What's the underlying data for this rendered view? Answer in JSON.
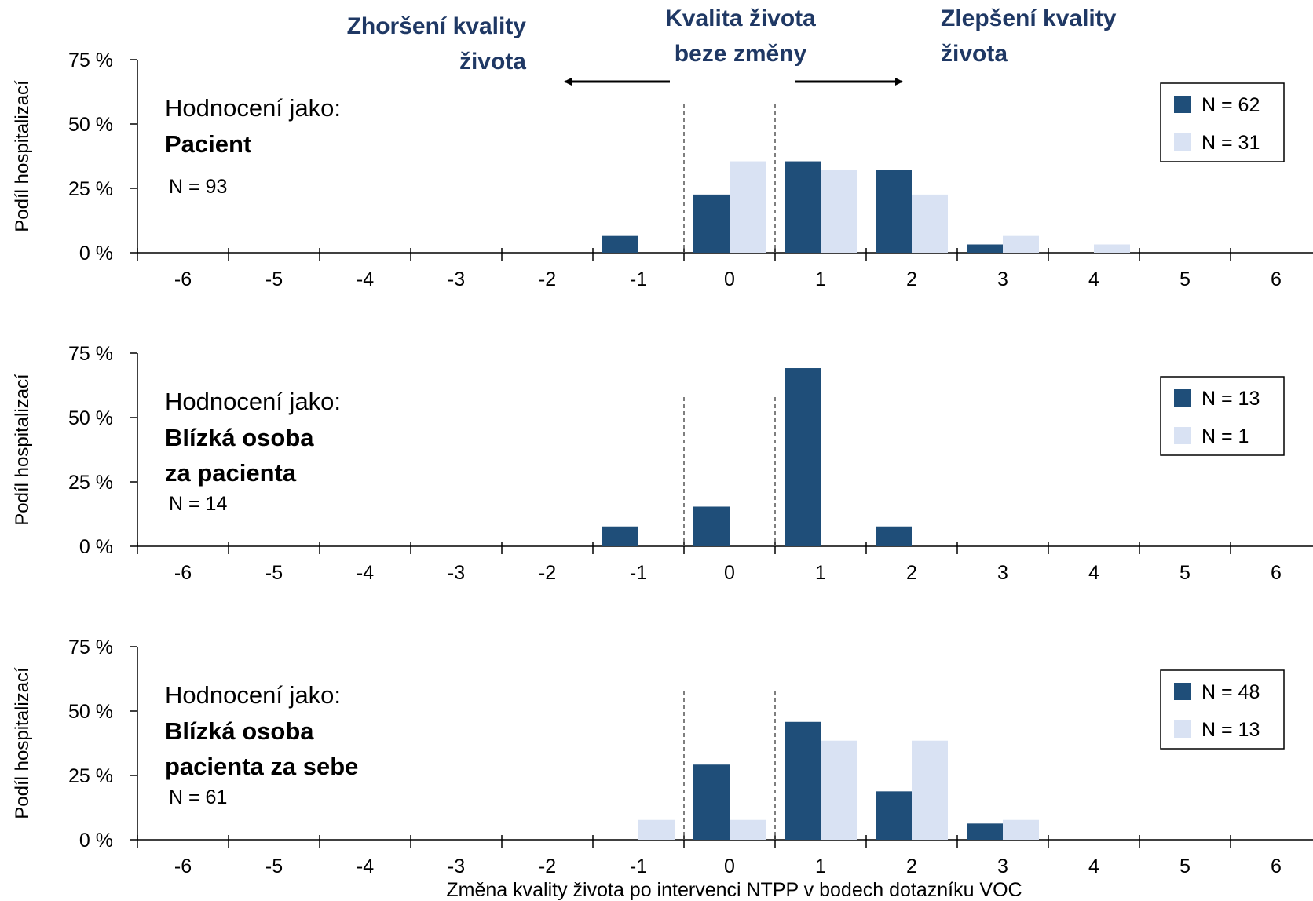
{
  "headers": {
    "left": [
      "Zhoršení kvality",
      "života"
    ],
    "center": [
      "Kvalita života",
      "beze změny"
    ],
    "right": [
      "Zlepšení kvality",
      "života"
    ]
  },
  "colors": {
    "dark": "#1f4e79",
    "light": "#d9e2f3",
    "header": "#1f3864"
  },
  "chart_data": [
    {
      "type": "bar",
      "title_line1": "Hodnocení jako:",
      "title_bold": [
        "Pacient"
      ],
      "n_label": "N = 93",
      "ylabel": "Podíl hospitalizací",
      "xlabel": "",
      "ylim": [
        0,
        75
      ],
      "yticks": [
        "0 %",
        "25 %",
        "50 %",
        "75 %"
      ],
      "categories": [
        "-6",
        "-5",
        "-4",
        "-3",
        "-2",
        "-1",
        "0",
        "1",
        "2",
        "3",
        "4",
        "5",
        "6"
      ],
      "series": [
        {
          "name": "N = 62",
          "color": "dark",
          "values": [
            0,
            0,
            0,
            0,
            0,
            6.5,
            22.6,
            35.5,
            32.3,
            3.2,
            0,
            0,
            0
          ]
        },
        {
          "name": "N = 31",
          "color": "light",
          "values": [
            0,
            0,
            0,
            0,
            0,
            0,
            35.5,
            32.3,
            22.6,
            6.5,
            3.2,
            0,
            0
          ]
        }
      ]
    },
    {
      "type": "bar",
      "title_line1": "Hodnocení jako:",
      "title_bold": [
        "Blízká osoba",
        "za pacienta"
      ],
      "n_label": "N = 14",
      "ylabel": "Podíl hospitalizací",
      "xlabel": "",
      "ylim": [
        0,
        75
      ],
      "yticks": [
        "0 %",
        "25 %",
        "50 %",
        "75 %"
      ],
      "categories": [
        "-6",
        "-5",
        "-4",
        "-3",
        "-2",
        "-1",
        "0",
        "1",
        "2",
        "3",
        "4",
        "5",
        "6"
      ],
      "series": [
        {
          "name": "N = 13",
          "color": "dark",
          "values": [
            0,
            0,
            0,
            0,
            0,
            7.7,
            15.4,
            69.2,
            7.7,
            0,
            0,
            0,
            0
          ]
        },
        {
          "name": "N = 1",
          "color": "light",
          "values": [
            0,
            0,
            0,
            0,
            0,
            0,
            0,
            0,
            0,
            0,
            0,
            0,
            0
          ]
        }
      ]
    },
    {
      "type": "bar",
      "title_line1": "Hodnocení jako:",
      "title_bold": [
        "Blízká osoba",
        "pacienta za sebe"
      ],
      "n_label": "N = 61",
      "ylabel": "Podíl hospitalizací",
      "xlabel": "Změna kvality života po intervenci NTPP v bodech dotazníku VOC",
      "ylim": [
        0,
        75
      ],
      "yticks": [
        "0 %",
        "25 %",
        "50 %",
        "75 %"
      ],
      "categories": [
        "-6",
        "-5",
        "-4",
        "-3",
        "-2",
        "-1",
        "0",
        "1",
        "2",
        "3",
        "4",
        "5",
        "6"
      ],
      "series": [
        {
          "name": "N = 48",
          "color": "dark",
          "values": [
            0,
            0,
            0,
            0,
            0,
            0,
            29.2,
            45.8,
            18.8,
            6.3,
            0,
            0,
            0
          ]
        },
        {
          "name": "N = 13",
          "color": "light",
          "values": [
            0,
            0,
            0,
            0,
            0,
            7.7,
            7.7,
            38.5,
            38.5,
            7.7,
            0,
            0,
            0
          ]
        }
      ]
    }
  ]
}
